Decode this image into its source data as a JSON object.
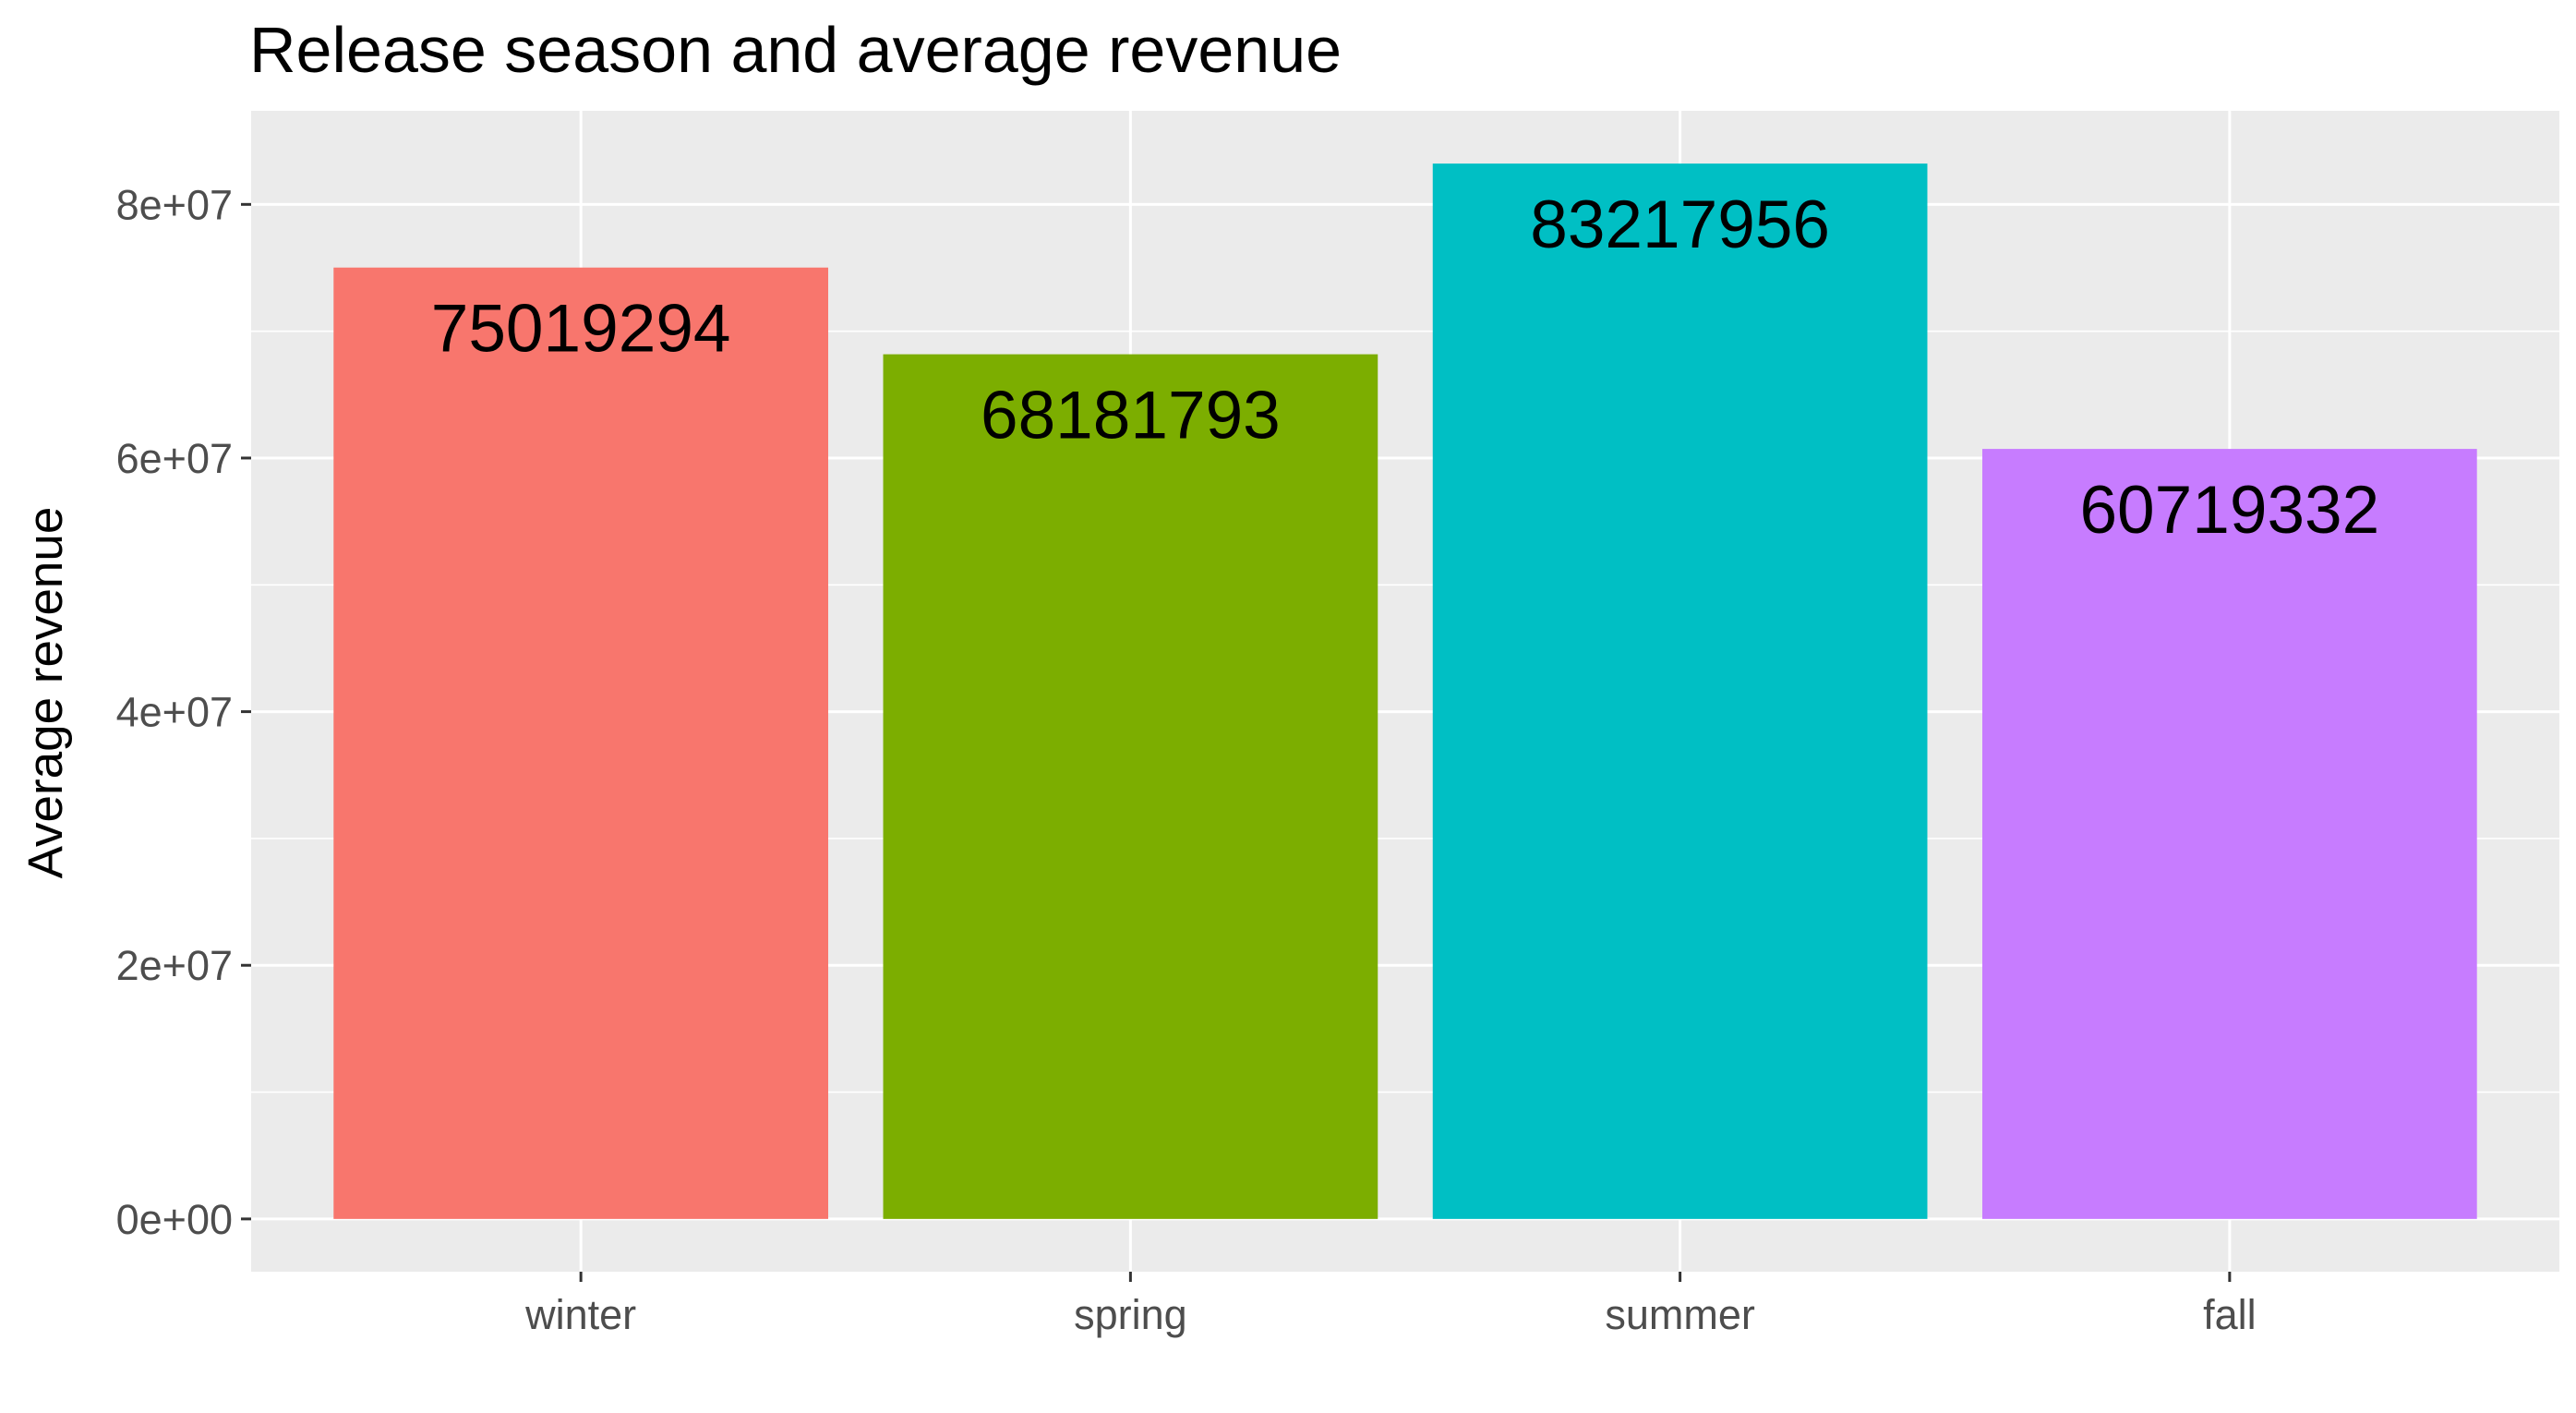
{
  "chart_data": {
    "type": "bar",
    "title": "Release season and average revenue",
    "xlabel": "",
    "ylabel": "Average revenue",
    "categories": [
      "winter",
      "spring",
      "summer",
      "fall"
    ],
    "values": [
      75019294,
      68181793,
      83217956,
      60719332
    ],
    "data_labels": [
      "75019294",
      "68181793",
      "83217956",
      "60719332"
    ],
    "colors": [
      "#F8766D",
      "#7CAE00",
      "#00BFC4",
      "#C77CFF"
    ],
    "ylim": [
      -4160898,
      87378854
    ],
    "y_ticks": [
      0,
      20000000,
      40000000,
      60000000,
      80000000
    ],
    "y_tick_labels": [
      "0e+00",
      "2e+07",
      "4e+07",
      "6e+07",
      "8e+07"
    ],
    "panel_background": "#EBEBEB",
    "grid_color": "#FFFFFF",
    "grid": true,
    "legend": "none"
  }
}
